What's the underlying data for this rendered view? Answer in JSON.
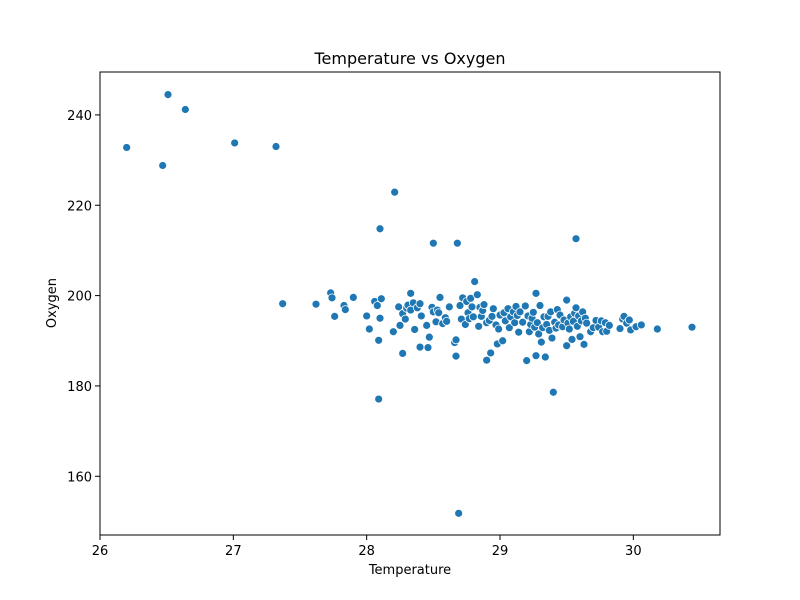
{
  "chart_data": {
    "type": "scatter",
    "title": "Temperature vs Oxygen",
    "xlabel": "Temperature",
    "ylabel": "Oxygen",
    "xlim": [
      26.0,
      30.65
    ],
    "ylim": [
      147.0,
      249.5
    ],
    "xticks": [
      26,
      27,
      28,
      29,
      30
    ],
    "yticks": [
      160,
      180,
      200,
      220,
      240
    ],
    "grid": false,
    "marker_color": "#1f77b4",
    "points": [
      [
        26.2,
        232.8
      ],
      [
        26.47,
        228.8
      ],
      [
        26.51,
        244.5
      ],
      [
        26.64,
        241.2
      ],
      [
        27.01,
        233.8
      ],
      [
        27.32,
        233.0
      ],
      [
        27.37,
        198.2
      ],
      [
        27.62,
        198.1
      ],
      [
        27.73,
        200.6
      ],
      [
        27.74,
        199.5
      ],
      [
        27.76,
        195.4
      ],
      [
        27.83,
        197.8
      ],
      [
        27.84,
        196.9
      ],
      [
        27.9,
        199.6
      ],
      [
        28.0,
        195.5
      ],
      [
        28.02,
        192.6
      ],
      [
        28.06,
        198.7
      ],
      [
        28.08,
        197.8
      ],
      [
        28.09,
        190.1
      ],
      [
        28.1,
        195.0
      ],
      [
        28.11,
        199.3
      ],
      [
        28.09,
        177.1
      ],
      [
        28.1,
        214.8
      ],
      [
        28.21,
        222.9
      ],
      [
        28.2,
        192.0
      ],
      [
        28.24,
        197.5
      ],
      [
        28.25,
        193.4
      ],
      [
        28.27,
        187.2
      ],
      [
        28.27,
        196.0
      ],
      [
        28.29,
        194.8
      ],
      [
        28.3,
        197.2
      ],
      [
        28.31,
        197.9
      ],
      [
        28.33,
        200.5
      ],
      [
        28.33,
        196.8
      ],
      [
        28.35,
        198.4
      ],
      [
        28.36,
        192.5
      ],
      [
        28.38,
        197.3
      ],
      [
        28.4,
        198.2
      ],
      [
        28.41,
        195.5
      ],
      [
        28.4,
        188.6
      ],
      [
        28.45,
        193.4
      ],
      [
        28.46,
        188.5
      ],
      [
        28.47,
        190.8
      ],
      [
        28.49,
        197.4
      ],
      [
        28.5,
        196.4
      ],
      [
        28.5,
        211.6
      ],
      [
        28.52,
        194.2
      ],
      [
        28.53,
        196.8
      ],
      [
        28.54,
        196.2
      ],
      [
        28.55,
        199.6
      ],
      [
        28.57,
        193.8
      ],
      [
        28.59,
        195.1
      ],
      [
        28.6,
        194.3
      ],
      [
        28.62,
        197.5
      ],
      [
        28.66,
        189.6
      ],
      [
        28.67,
        186.6
      ],
      [
        28.67,
        190.2
      ],
      [
        28.68,
        211.6
      ],
      [
        28.69,
        151.8
      ],
      [
        28.7,
        197.8
      ],
      [
        28.71,
        194.8
      ],
      [
        28.72,
        199.5
      ],
      [
        28.74,
        193.6
      ],
      [
        28.75,
        198.7
      ],
      [
        28.76,
        196.2
      ],
      [
        28.77,
        194.9
      ],
      [
        28.78,
        199.4
      ],
      [
        28.79,
        197.5
      ],
      [
        28.8,
        195.3
      ],
      [
        28.81,
        203.1
      ],
      [
        28.83,
        200.2
      ],
      [
        28.84,
        193.2
      ],
      [
        28.85,
        197.4
      ],
      [
        28.86,
        195.4
      ],
      [
        28.87,
        196.7
      ],
      [
        28.88,
        198.0
      ],
      [
        28.9,
        194.0
      ],
      [
        28.9,
        185.7
      ],
      [
        28.92,
        194.5
      ],
      [
        28.93,
        187.3
      ],
      [
        28.94,
        195.4
      ],
      [
        28.95,
        197.1
      ],
      [
        28.97,
        193.5
      ],
      [
        28.98,
        189.3
      ],
      [
        28.99,
        192.6
      ],
      [
        29.0,
        195.7
      ],
      [
        29.02,
        190.0
      ],
      [
        29.03,
        196.2
      ],
      [
        29.04,
        194.4
      ],
      [
        29.06,
        197.1
      ],
      [
        29.07,
        192.9
      ],
      [
        29.08,
        195.3
      ],
      [
        29.1,
        196.4
      ],
      [
        29.11,
        194.0
      ],
      [
        29.12,
        197.6
      ],
      [
        29.13,
        195.6
      ],
      [
        29.14,
        191.9
      ],
      [
        29.15,
        196.4
      ],
      [
        29.17,
        194.1
      ],
      [
        29.19,
        197.7
      ],
      [
        29.2,
        185.6
      ],
      [
        29.21,
        195.5
      ],
      [
        29.22,
        192.0
      ],
      [
        29.23,
        193.6
      ],
      [
        29.24,
        195.0
      ],
      [
        29.25,
        196.3
      ],
      [
        29.26,
        193.0
      ],
      [
        29.27,
        200.5
      ],
      [
        29.27,
        186.7
      ],
      [
        29.28,
        194.0
      ],
      [
        29.29,
        191.5
      ],
      [
        29.3,
        197.8
      ],
      [
        29.31,
        189.7
      ],
      [
        29.32,
        192.9
      ],
      [
        29.33,
        195.3
      ],
      [
        29.34,
        186.4
      ],
      [
        29.35,
        193.6
      ],
      [
        29.36,
        195.4
      ],
      [
        29.37,
        192.3
      ],
      [
        29.38,
        196.4
      ],
      [
        29.39,
        190.6
      ],
      [
        29.4,
        178.6
      ],
      [
        29.41,
        194.1
      ],
      [
        29.42,
        192.8
      ],
      [
        29.43,
        196.9
      ],
      [
        29.44,
        193.5
      ],
      [
        29.45,
        195.7
      ],
      [
        29.47,
        193.1
      ],
      [
        29.48,
        194.6
      ],
      [
        29.5,
        199.0
      ],
      [
        29.5,
        188.9
      ],
      [
        29.51,
        193.9
      ],
      [
        29.52,
        192.6
      ],
      [
        29.53,
        195.3
      ],
      [
        29.54,
        190.3
      ],
      [
        29.55,
        194.3
      ],
      [
        29.56,
        196.1
      ],
      [
        29.57,
        212.6
      ],
      [
        29.57,
        197.3
      ],
      [
        29.58,
        193.2
      ],
      [
        29.59,
        195.5
      ],
      [
        29.6,
        190.9
      ],
      [
        29.61,
        194.4
      ],
      [
        29.62,
        196.4
      ],
      [
        29.63,
        189.2
      ],
      [
        29.64,
        195.0
      ],
      [
        29.65,
        193.9
      ],
      [
        29.68,
        192.0
      ],
      [
        29.7,
        192.9
      ],
      [
        29.72,
        194.5
      ],
      [
        29.74,
        193.0
      ],
      [
        29.76,
        194.4
      ],
      [
        29.77,
        192.0
      ],
      [
        29.79,
        194.0
      ],
      [
        29.8,
        192.1
      ],
      [
        29.82,
        193.4
      ],
      [
        29.9,
        192.7
      ],
      [
        29.92,
        194.8
      ],
      [
        29.93,
        195.4
      ],
      [
        29.95,
        193.9
      ],
      [
        29.97,
        194.6
      ],
      [
        29.98,
        192.4
      ],
      [
        30.02,
        193.1
      ],
      [
        30.06,
        193.5
      ],
      [
        30.18,
        192.6
      ],
      [
        30.44,
        193.0
      ]
    ]
  }
}
